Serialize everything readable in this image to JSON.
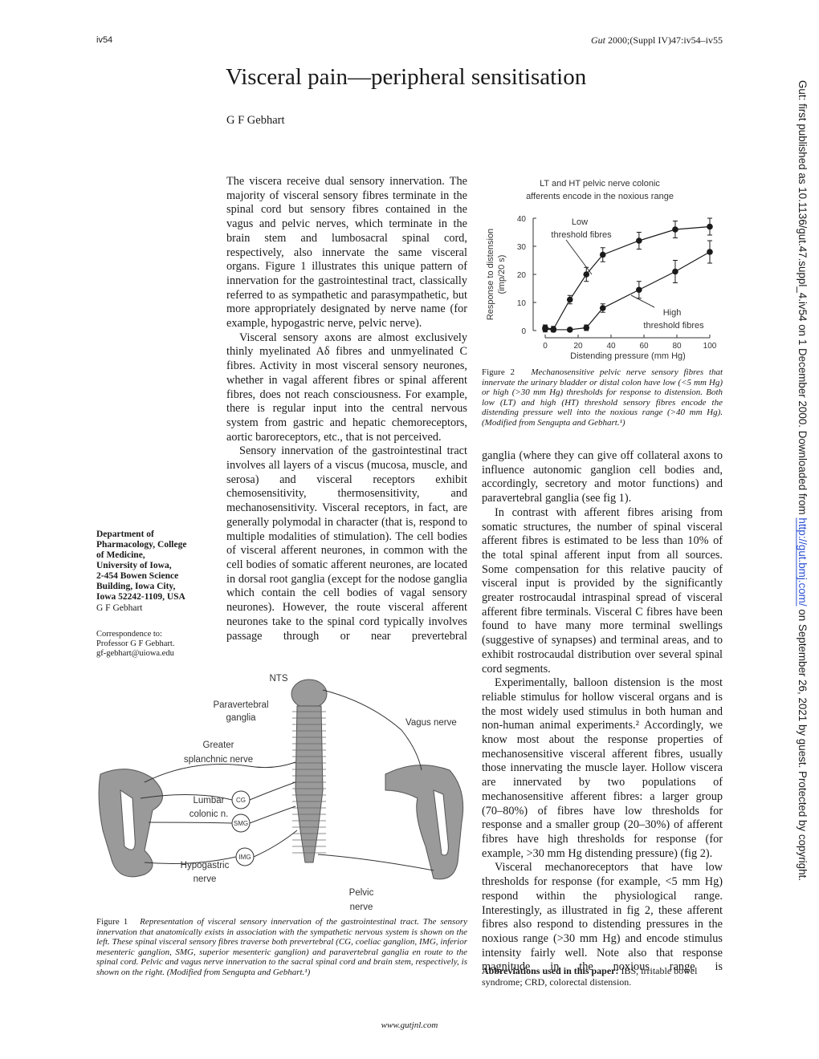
{
  "header": {
    "page": "iv54",
    "journal": "Gut",
    "citation": "2000;(Suppl IV)47:iv54–iv55"
  },
  "title": "Visceral pain—peripheral sensitisation",
  "author": "G F Gebhart",
  "affiliation": {
    "lines": [
      "Department of",
      "Pharmacology, College",
      "of Medicine,",
      "University of Iowa,",
      "2-454 Bowen Science",
      "Building, Iowa City,",
      "Iowa 52242-1109, USA"
    ],
    "author": "G F Gebhart"
  },
  "correspondence": {
    "label": "Correspondence to:",
    "name": "Professor G F Gebhart.",
    "email": "gf-gebhart@uiowa.edu"
  },
  "column_1": {
    "paragraphs": [
      "The viscera receive dual sensory innervation. The majority of visceral sensory fibres terminate in the spinal cord but sensory fibres contained in the vagus and pelvic nerves, which terminate in the brain stem and lumbosacral spinal cord, respectively, also innervate the same visceral organs. Figure 1 illustrates this unique pattern of innervation for the gastrointestinal tract, classically referred to as sympathetic and parasympathetic, but more appropriately designated by nerve name (for example, hypogastric nerve, pelvic nerve).",
      "Visceral sensory axons are almost exclusively thinly myelinated Aδ fibres and unmyelinated C fibres. Activity in most visceral sensory neurones, whether in vagal afferent fibres or spinal afferent fibres, does not reach consciousness. For example, there is regular input into the central nervous system from gastric and hepatic chemoreceptors, aortic baroreceptors, etc., that is not perceived.",
      "Sensory innervation of the gastrointestinal tract involves all layers of a viscus (mucosa, muscle, and serosa) and visceral receptors exhibit chemosensitivity, thermosensitivity, and mechanosensitivity. Visceral receptors, in fact, are generally polymodal in character (that is, respond to multiple modalities of stimulation). The cell bodies of visceral afferent neurones, in common with the cell bodies of somatic afferent neurones, are located in dorsal root ganglia (except for the nodose ganglia which contain the cell bodies of vagal sensory neurones). However, the route visceral afferent neurones take to the spinal cord typically involves passage through or near prevertebral"
    ]
  },
  "column_2": {
    "paragraphs": [
      "ganglia (where they can give off collateral axons to influence autonomic ganglion cell bodies and, accordingly, secretory and motor functions) and paravertebral ganglia (see fig 1).",
      "In contrast with afferent fibres arising from somatic structures, the number of spinal visceral afferent fibres is estimated to be less than 10% of the total spinal afferent input from all sources. Some compensation for this relative paucity of visceral input is provided by the significantly greater rostrocaudal intraspinal spread of visceral afferent fibre terminals. Visceral C fibres have been found to have many more terminal swellings (suggestive of synapses) and terminal areas, and to exhibit rostrocaudal distribution over several spinal cord segments.",
      "Experimentally, balloon distension is the most reliable stimulus for hollow visceral organs and is the most widely used stimulus in both human and non-human animal experiments.² Accordingly, we know most about the response properties of mechanosensitive visceral afferent fibres, usually those innervating the muscle layer. Hollow viscera are innervated by two populations of mechanosensitive afferent fibres: a larger group (70–80%) of fibres have low thresholds for response and a smaller group (20–30%) of afferent fibres have high thresholds for response (for example, >30 mm Hg distending pressure) (fig 2).",
      "Visceral mechanoreceptors that have low thresholds for response (for example, <5 mm Hg) respond within the physiological range. Interestingly, as illustrated in fig 2, these afferent fibres also respond to distending pressures in the noxious range (>30 mm Hg) and encode stimulus intensity fairly well. Note also that response magnitude in the noxious range is"
    ]
  },
  "figure_2": {
    "type": "line",
    "title": [
      "LT and HT pelvic nerve colonic",
      "afferents encode in the noxious range"
    ],
    "y_label": [
      "Response to distension",
      "(imp/20 s)"
    ],
    "x_label": "Distending pressure (mm Hg)",
    "x": [
      0,
      5,
      15,
      25,
      35,
      57,
      79,
      100
    ],
    "series": [
      {
        "color": "#1a1a1a",
        "values": [
          1,
          0.5,
          11,
          20,
          27,
          32,
          36,
          37
        ],
        "errors": [
          1,
          1,
          1.5,
          2.5,
          2.5,
          3,
          3,
          3
        ]
      },
      {
        "color": "#1a1a1a",
        "values": [
          0.5,
          0.3,
          0.3,
          1,
          8,
          14.5,
          21,
          28
        ],
        "errors": [
          1,
          0.5,
          0.5,
          1,
          1.5,
          3,
          4,
          4
        ]
      }
    ],
    "annotations": [
      [
        "Low",
        "threshold fibres"
      ],
      [
        "High",
        "threshold fibres"
      ]
    ],
    "xlim": [
      0,
      100
    ],
    "xticks": [
      0,
      20,
      40,
      60,
      80,
      100
    ],
    "ylim": [
      0,
      40
    ],
    "yticks": [
      0,
      10,
      20,
      30,
      40
    ],
    "caption": {
      "label": "Figure 2",
      "text": "Mechanosensitive pelvic nerve sensory fibres that innervate the urinary bladder or distal colon have low (<5 mm Hg) or high (>30 mm Hg) thresholds for response to distension. Both low (LT) and high (HT) threshold sensory fibres encode the distending pressure well into the noxious range (>40 mm Hg). (Modified from Sengupta and Gebhart.¹)"
    }
  },
  "figure_1": {
    "labels": {
      "nts": "NTS",
      "paravertebral": [
        "Paravertebral",
        "ganglia"
      ],
      "vagus": "Vagus nerve",
      "splanchnic": [
        "Greater",
        "splanchnic nerve"
      ],
      "lumbar": [
        "Lumbar",
        "colonic n."
      ],
      "cg": "CG",
      "smg": "SMG",
      "img": "IMG",
      "hypogastric": [
        "Hypogastric",
        "nerve"
      ],
      "pelvic": [
        "Pelvic",
        "nerve"
      ]
    },
    "caption": {
      "label": "Figure 1",
      "text": "Representation of visceral sensory innervation of the gastrointestinal tract. The sensory innervation that anatomically exists in association with the sympathetic nervous system is shown on the left. These spinal visceral sensory fibres traverse both prevertebral (CG, coeliac ganglion, IMG, inferior mesenteric ganglion, SMG, superior mesenteric ganglion) and paravertebral ganglia en route to the spinal cord. Pelvic and vagus nerve innervation to the sacral spinal cord and brain stem, respectively, is shown on the right. (Modified from Sengupta and Gebhart.¹)"
    }
  },
  "abbreviations": {
    "label": "Abbreviations used in this paper:",
    "text": "IBS, irritable bowel syndrome; CRD, colorectal distension."
  },
  "footer": "www.gutjnl.com",
  "margin_note": {
    "before": "Gut: first published as 10.1136/gut.47.suppl_4.iv54 on 1 December 2000. Downloaded from ",
    "link": "http://gut.bmj.com/",
    "after": " on September 26, 2021 by guest. Protected by copyright."
  }
}
